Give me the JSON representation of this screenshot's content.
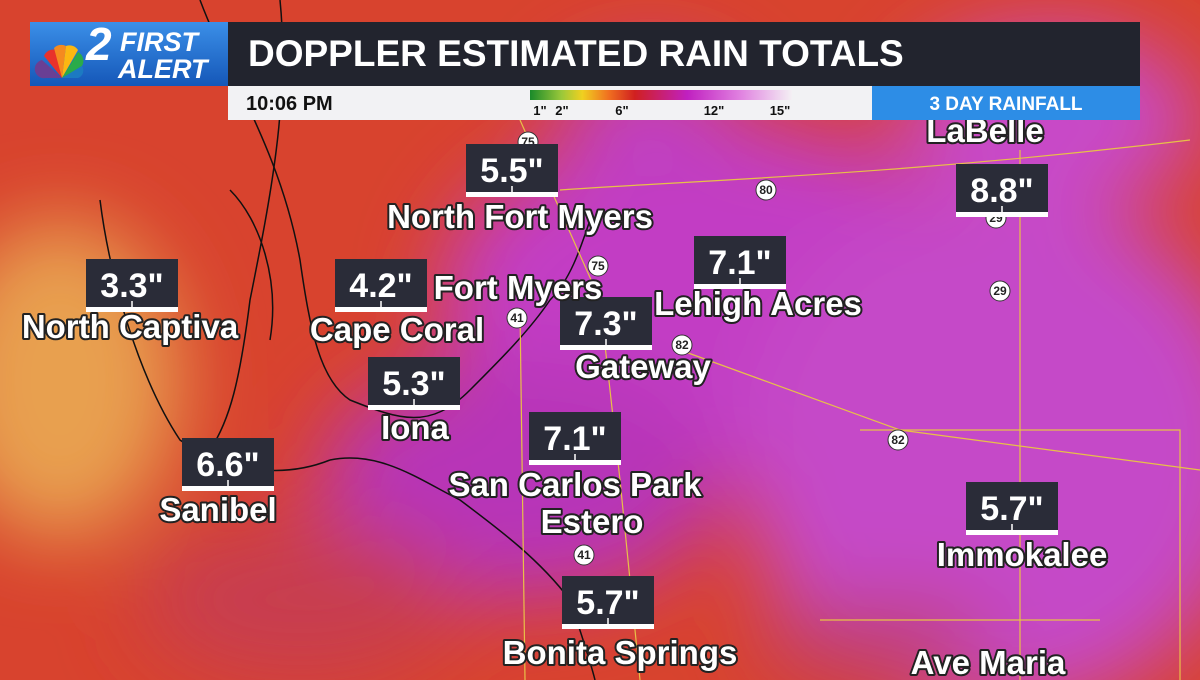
{
  "logo": {
    "number": "2",
    "line1": "FIRST",
    "line2": "ALERT"
  },
  "header": {
    "title": "DOPPLER ESTIMATED RAIN TOTALS",
    "time": "10:06 PM",
    "badge": "3 DAY RAINFALL"
  },
  "legend": {
    "labels": [
      "1\"",
      "2\"",
      "6\"",
      "12\"",
      "15\""
    ]
  },
  "cities": [
    "LaBelle",
    "North Fort Myers",
    "North Captiva",
    "Cape Coral",
    "Fort Myers",
    "Lehigh Acres",
    "Gateway",
    "Iona",
    "San Carlos Park",
    "Estero",
    "Sanibel",
    "Immokalee",
    "Bonita Springs",
    "Ave Maria"
  ],
  "rain_totals": [
    "5.5\"",
    "8.8\"",
    "3.3\"",
    "4.2\"",
    "7.1\"",
    "7.3\"",
    "5.3\"",
    "7.1\"",
    "6.6\"",
    "5.7\"",
    "5.7\""
  ],
  "road_shields": [
    "75",
    "75",
    "80",
    "29",
    "29",
    "82",
    "82",
    "41",
    "41"
  ]
}
